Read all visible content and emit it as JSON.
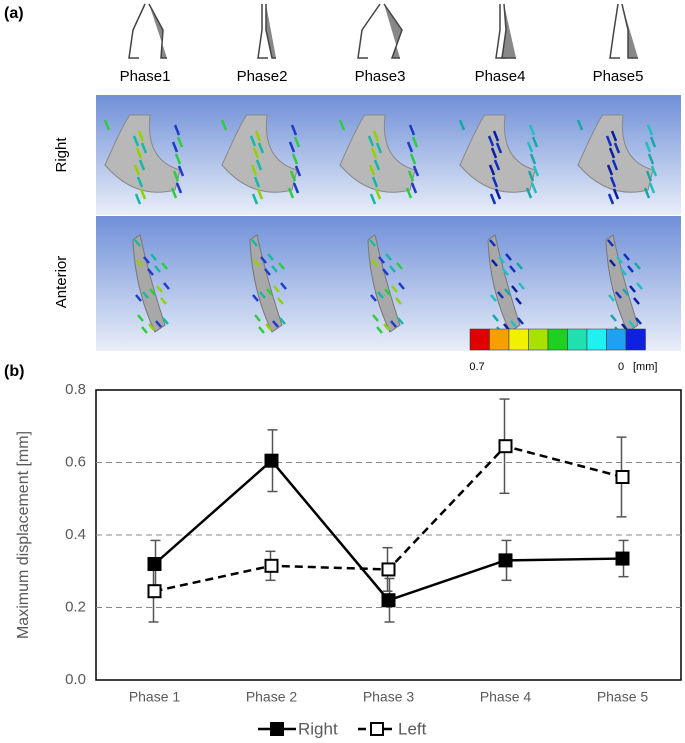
{
  "panel_a": {
    "label": "(a)",
    "phases": [
      "Phase1",
      "Phase2",
      "Phase3",
      "Phase4",
      "Phase5"
    ],
    "views": [
      "Right",
      "Anterior"
    ],
    "colorbar": {
      "max_label": "0.7",
      "min_label": "0",
      "unit": "[mm]"
    }
  },
  "chart_data": {
    "type": "line",
    "panel_label": "(b)",
    "y_label": "Maximum displacement [mm]",
    "categories": [
      "Phase 1",
      "Phase 2",
      "Phase 3",
      "Phase 4",
      "Phase 5"
    ],
    "series": [
      {
        "name": "Right",
        "color": "#000000",
        "marker": "filled-square",
        "dash": "solid",
        "values": [
          0.32,
          0.605,
          0.22,
          0.33,
          0.335
        ],
        "errors": [
          0.065,
          0.085,
          0.06,
          0.055,
          0.05
        ]
      },
      {
        "name": "Left",
        "color": "#000000",
        "marker": "open-square",
        "dash": "dashed",
        "values": [
          0.245,
          0.315,
          0.305,
          0.645,
          0.56
        ],
        "errors": [
          0.085,
          0.04,
          0.06,
          0.13,
          0.11
        ]
      }
    ],
    "ylim": [
      0,
      0.8
    ],
    "yticks": [
      {
        "value": 0,
        "label": "0.0"
      },
      0.2,
      0.4,
      0.6,
      0.8
    ],
    "grid": true,
    "legend": "bottom"
  }
}
